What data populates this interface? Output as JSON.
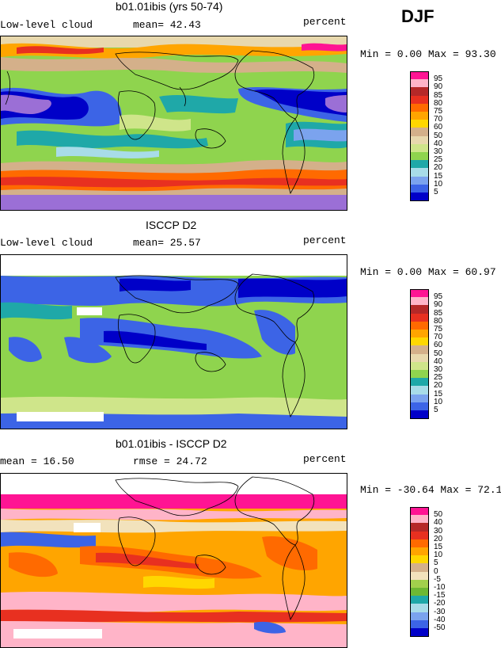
{
  "season": "DJF",
  "colors": {
    "scale_abs": [
      "#9b6fd6",
      "#0000c8",
      "#3c64e6",
      "#7ba3ee",
      "#a8dce8",
      "#1fa8a8",
      "#8fd44e",
      "#cfe58a",
      "#e8d8ad",
      "#d4b08a",
      "#ffd700",
      "#ffa500",
      "#ff6a00",
      "#e83020",
      "#b52828",
      "#ffb4c8",
      "#ff1493"
    ],
    "scale_diff": [
      "#9b6fd6",
      "#0000c8",
      "#3c64e6",
      "#7ba3ee",
      "#a8dce8",
      "#1fa8a8",
      "#6db833",
      "#a2d04c",
      "#f2e2bc",
      "#d4b08a",
      "#ffd700",
      "#ffa500",
      "#ff6a00",
      "#e83020",
      "#b52828",
      "#ffb4c8",
      "#ff1493"
    ],
    "ocean_placeholder": "#ffffff"
  },
  "panels": [
    {
      "title": "b01.01ibis (yrs 50-74)",
      "left_label": "Low-level cloud",
      "stat_label": "mean=  42.43",
      "units": "percent",
      "minmax": "Min =   0.00 Max =  93.30",
      "legend_ticks": [
        "95",
        "90",
        "85",
        "80",
        "75",
        "70",
        "60",
        "50",
        "40",
        "30",
        "25",
        "20",
        "15",
        "10",
        "5"
      ],
      "scale": "abs"
    },
    {
      "title": "ISCCP D2",
      "left_label": "Low-level cloud",
      "stat_label": "mean=  25.57",
      "units": "percent",
      "minmax": "Min =   0.00 Max =  60.97",
      "legend_ticks": [
        "95",
        "90",
        "85",
        "80",
        "75",
        "70",
        "60",
        "50",
        "40",
        "30",
        "25",
        "20",
        "15",
        "10",
        "5"
      ],
      "scale": "abs"
    },
    {
      "title": "b01.01ibis - ISCCP D2",
      "left_label": "mean =  16.50",
      "stat_label": "rmse =  24.72",
      "units": "percent",
      "minmax": "Min = -30.64 Max =  72.18",
      "legend_ticks": [
        "50",
        "40",
        "30",
        "20",
        "15",
        "10",
        "5",
        "0",
        "-5",
        "-10",
        "-15",
        "-20",
        "-30",
        "-40",
        "-50"
      ],
      "scale": "diff"
    }
  ],
  "chart_data": [
    {
      "type": "heatmap",
      "title": "b01.01ibis (yrs 50-74)",
      "variable": "Low-level cloud",
      "units": "percent",
      "mean": 42.43,
      "min": 0.0,
      "max": 93.3,
      "contour_levels": [
        5,
        10,
        15,
        20,
        25,
        30,
        40,
        50,
        60,
        70,
        75,
        80,
        85,
        90,
        95
      ]
    },
    {
      "type": "heatmap",
      "title": "ISCCP D2",
      "variable": "Low-level cloud",
      "units": "percent",
      "mean": 25.57,
      "min": 0.0,
      "max": 60.97,
      "contour_levels": [
        5,
        10,
        15,
        20,
        25,
        30,
        40,
        50,
        60,
        70,
        75,
        80,
        85,
        90,
        95
      ]
    },
    {
      "type": "heatmap",
      "title": "b01.01ibis - ISCCP D2",
      "units": "percent",
      "mean": 16.5,
      "rmse": 24.72,
      "min": -30.64,
      "max": 72.18,
      "contour_levels": [
        -50,
        -40,
        -30,
        -20,
        -15,
        -10,
        -5,
        0,
        5,
        10,
        15,
        20,
        30,
        40,
        50
      ]
    }
  ]
}
